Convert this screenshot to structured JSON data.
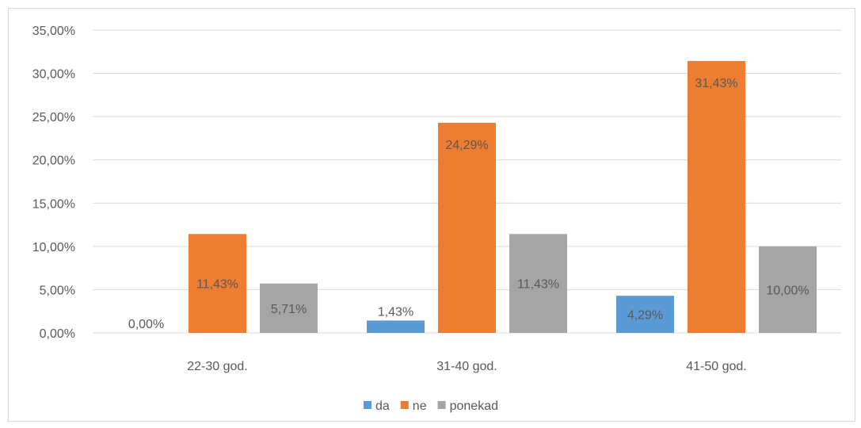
{
  "chart_data": {
    "type": "bar",
    "title": "",
    "categories": [
      "22-30 god.",
      "31-40 god.",
      "41-50 god."
    ],
    "series": [
      {
        "name": "da",
        "values": [
          0.0,
          1.43,
          4.29
        ],
        "labels": [
          "0,00%",
          "1,43%",
          "4,29%"
        ],
        "color": "#5b9bd5"
      },
      {
        "name": "ne",
        "values": [
          11.43,
          24.29,
          31.43
        ],
        "labels": [
          "11,43%",
          "24,29%",
          "31,43%"
        ],
        "color": "#ed7d31"
      },
      {
        "name": "ponekad",
        "values": [
          5.71,
          11.43,
          10.0
        ],
        "labels": [
          "5,71%",
          "11,43%",
          "10,00%"
        ],
        "color": "#a5a5a5"
      }
    ],
    "ylim": [
      0,
      35
    ],
    "yticks": [
      0,
      5,
      10,
      15,
      20,
      25,
      30,
      35
    ],
    "ytick_labels": [
      "0,00%",
      "5,00%",
      "10,00%",
      "15,00%",
      "20,00%",
      "25,00%",
      "30,00%",
      "35,00%"
    ],
    "grid": true,
    "legend": "bottom",
    "colors": {
      "gridline": "#d9d9d9",
      "text": "#595959"
    }
  }
}
